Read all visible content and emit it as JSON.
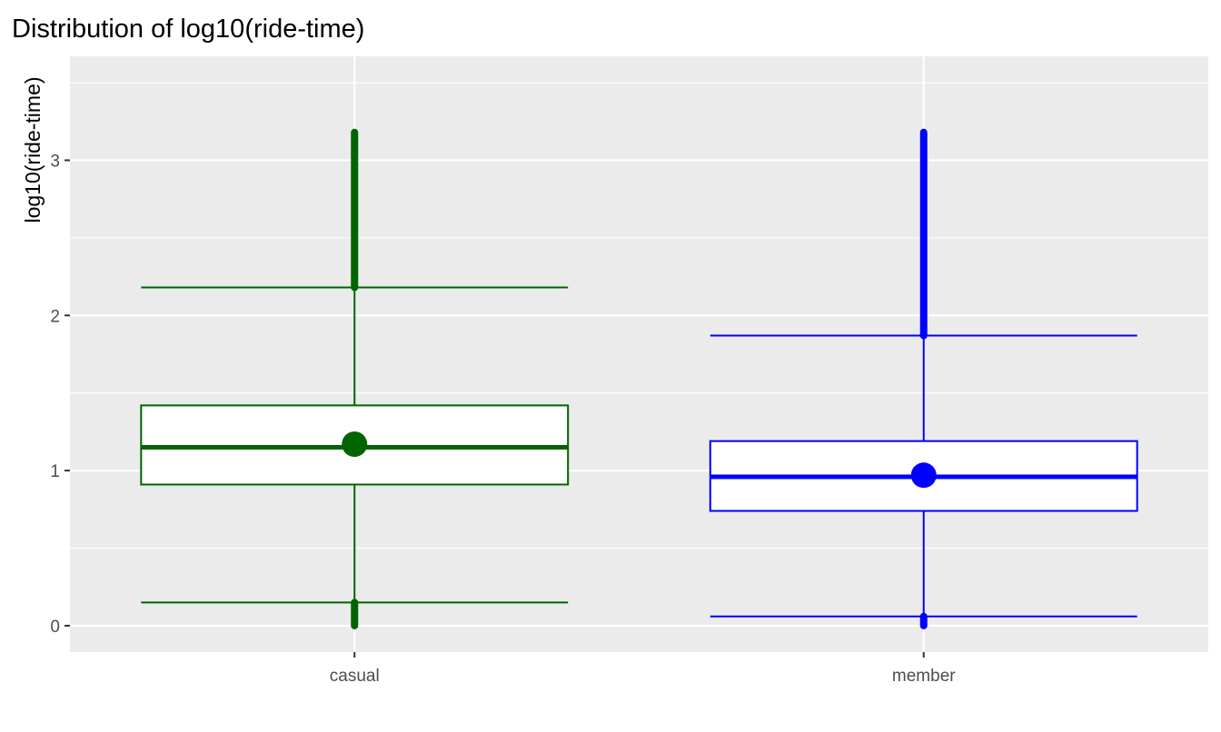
{
  "chart_data": {
    "type": "boxplot",
    "title": "Distribution of log10(ride-time)",
    "xlabel": "",
    "ylabel": "log10(ride-time)",
    "ylim": [
      -0.17,
      3.67
    ],
    "yticks": [
      0,
      1,
      2,
      3
    ],
    "grid": true,
    "categories": [
      "casual",
      "member"
    ],
    "series": [
      {
        "category": "casual",
        "color": "#006400",
        "whisker_low": 0.15,
        "q1": 0.91,
        "median": 1.15,
        "mean": 1.17,
        "q3": 1.42,
        "whisker_high": 2.18,
        "outliers_low": [
          0.0,
          0.15
        ],
        "outliers_high": [
          2.18,
          3.18
        ]
      },
      {
        "category": "member",
        "color": "#0000ff",
        "whisker_low": 0.06,
        "q1": 0.74,
        "median": 0.96,
        "mean": 0.97,
        "q3": 1.19,
        "whisker_high": 1.87,
        "outliers_low": [
          0.0,
          0.06
        ],
        "outliers_high": [
          1.87,
          3.18
        ]
      }
    ]
  }
}
